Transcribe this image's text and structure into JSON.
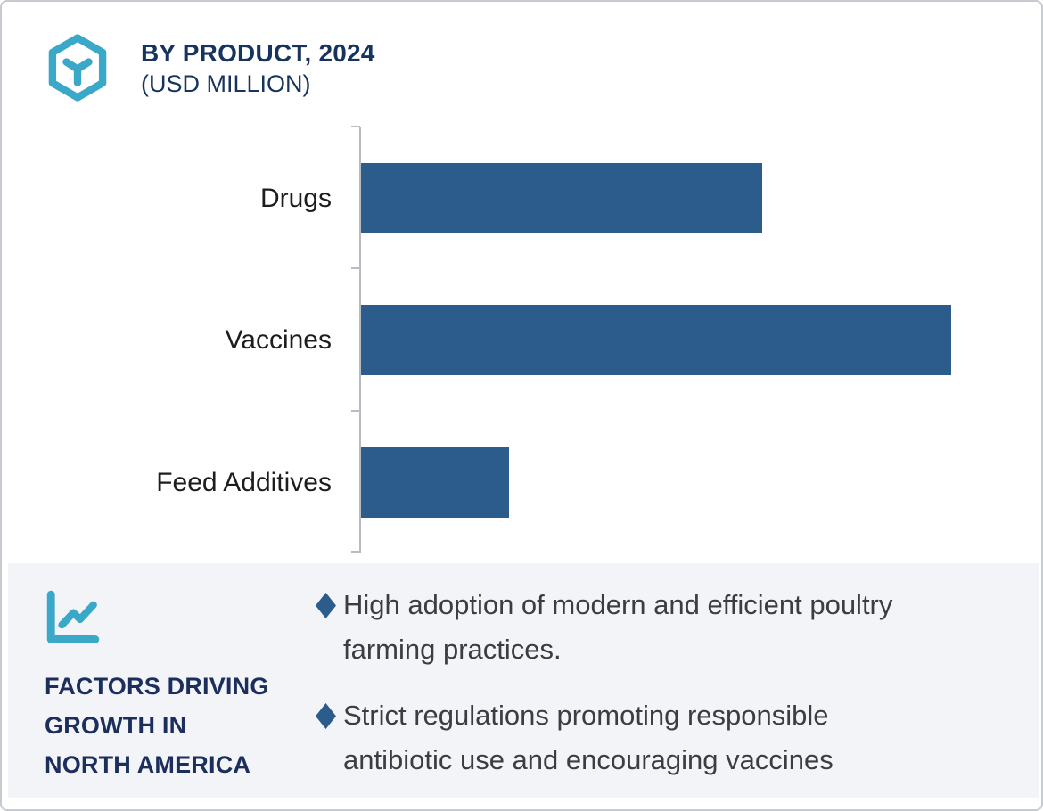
{
  "header": {
    "title": "BY PRODUCT, 2024",
    "subtitle": "(USD MILLION)"
  },
  "chart_data": {
    "type": "bar",
    "orientation": "horizontal",
    "title": "BY PRODUCT, 2024 (USD MILLION)",
    "categories": [
      "Drugs",
      "Vaccines",
      "Feed Additives"
    ],
    "series": [
      {
        "name": "Market size (relative, % of largest bar)",
        "values": [
          68,
          100,
          25
        ]
      }
    ],
    "value_axis_labels_visible": false,
    "grid": false,
    "legend": "none",
    "bar_color": "#2b5c8c",
    "axis_color": "#b9bcc0"
  },
  "factors": {
    "heading_lines": [
      "FACTORS DRIVING",
      "GROWTH IN",
      "NORTH AMERICA"
    ],
    "bullets": [
      "High adoption of modern and efficient poultry farming practices.",
      "Strict regulations promoting responsible antibiotic use and encouraging vaccines"
    ]
  },
  "icons": {
    "logo": "hexagon-cube-logo",
    "panel": "line-chart-icon",
    "bullet": "diamond-bullet"
  },
  "colors": {
    "accent_teal": "#3aa8c8",
    "navy_text": "#17345f",
    "heading_navy": "#1b2e5c",
    "bar_blue": "#2b5c8c",
    "panel_bg": "#f3f4f8",
    "border": "#c7cbd1",
    "axis_gray": "#b9bcc0",
    "body_text": "#3b3d40"
  }
}
